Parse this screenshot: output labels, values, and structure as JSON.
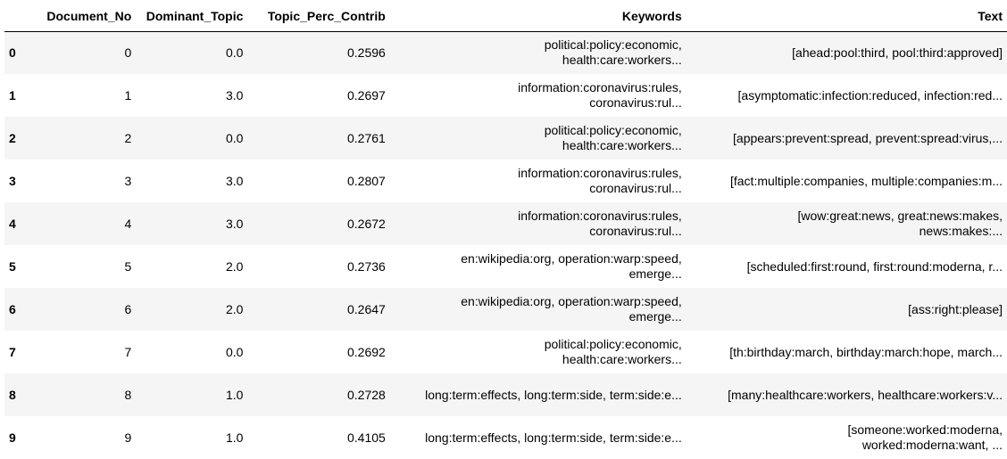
{
  "columns": [
    "Document_No",
    "Dominant_Topic",
    "Topic_Perc_Contrib",
    "Keywords",
    "Text"
  ],
  "rows": [
    {
      "index": "0",
      "doc": "0",
      "topic": "0.0",
      "perc": "0.2596",
      "kw": [
        "political:policy:economic,",
        "health:care:workers..."
      ],
      "text": [
        "[ahead:pool:third, pool:third:approved]"
      ]
    },
    {
      "index": "1",
      "doc": "1",
      "topic": "3.0",
      "perc": "0.2697",
      "kw": [
        "information:coronavirus:rules,",
        "coronavirus:rul..."
      ],
      "text": [
        "[asymptomatic:infection:reduced, infection:red..."
      ]
    },
    {
      "index": "2",
      "doc": "2",
      "topic": "0.0",
      "perc": "0.2761",
      "kw": [
        "political:policy:economic,",
        "health:care:workers..."
      ],
      "text": [
        "[appears:prevent:spread, prevent:spread:virus,..."
      ]
    },
    {
      "index": "3",
      "doc": "3",
      "topic": "3.0",
      "perc": "0.2807",
      "kw": [
        "information:coronavirus:rules,",
        "coronavirus:rul..."
      ],
      "text": [
        "[fact:multiple:companies, multiple:companies:m..."
      ]
    },
    {
      "index": "4",
      "doc": "4",
      "topic": "3.0",
      "perc": "0.2672",
      "kw": [
        "information:coronavirus:rules,",
        "coronavirus:rul..."
      ],
      "text": [
        "[wow:great:news, great:news:makes,",
        "news:makes:..."
      ]
    },
    {
      "index": "5",
      "doc": "5",
      "topic": "2.0",
      "perc": "0.2736",
      "kw": [
        "en:wikipedia:org, operation:warp:speed,",
        "emerge..."
      ],
      "text": [
        "[scheduled:first:round, first:round:moderna, r..."
      ]
    },
    {
      "index": "6",
      "doc": "6",
      "topic": "2.0",
      "perc": "0.2647",
      "kw": [
        "en:wikipedia:org, operation:warp:speed,",
        "emerge..."
      ],
      "text": [
        "[ass:right:please]"
      ]
    },
    {
      "index": "7",
      "doc": "7",
      "topic": "0.0",
      "perc": "0.2692",
      "kw": [
        "political:policy:economic,",
        "health:care:workers..."
      ],
      "text": [
        "[th:birthday:march, birthday:march:hope, march..."
      ]
    },
    {
      "index": "8",
      "doc": "8",
      "topic": "1.0",
      "perc": "0.2728",
      "kw": [
        "long:term:effects, long:term:side, term:side:e..."
      ],
      "text": [
        "[many:healthcare:workers, healthcare:workers:v..."
      ]
    },
    {
      "index": "9",
      "doc": "9",
      "topic": "1.0",
      "perc": "0.4105",
      "kw": [
        "long:term:effects, long:term:side, term:side:e..."
      ],
      "text": [
        "[someone:worked:moderna,",
        "worked:moderna:want, ..."
      ]
    }
  ]
}
